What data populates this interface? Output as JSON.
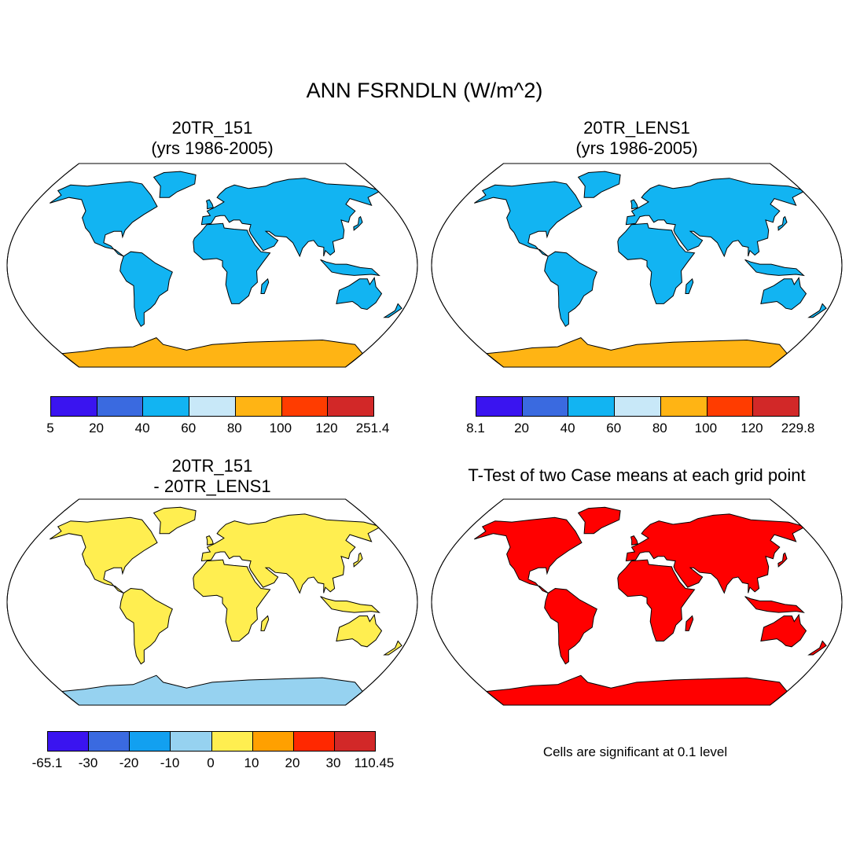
{
  "title": "ANN FSRNDLN (W/m^2)",
  "panels": [
    {
      "id": "case1",
      "title_line1": "20TR_151",
      "title_line2": "(yrs 1986-2005)",
      "colorbar": {
        "colors": [
          "#3a14f0",
          "#3a6ae0",
          "#12b4f2",
          "#c8e8f8",
          "#ffb414",
          "#ff3c00",
          "#d22828"
        ],
        "labels": [
          "5",
          "20",
          "40",
          "60",
          "80",
          "100",
          "120",
          "251.4"
        ]
      },
      "ocean_color": "#ffffff",
      "land_color": "#12b4f2",
      "ice_color": "#ffb414"
    },
    {
      "id": "case2",
      "title_line1": "20TR_LENS1",
      "title_line2": "(yrs 1986-2005)",
      "colorbar": {
        "colors": [
          "#3a14f0",
          "#3a6ae0",
          "#12b4f2",
          "#c8e8f8",
          "#ffb414",
          "#ff3c00",
          "#d22828"
        ],
        "labels": [
          "8.1",
          "20",
          "40",
          "60",
          "80",
          "100",
          "120",
          "229.8"
        ]
      },
      "ocean_color": "#ffffff",
      "land_color": "#12b4f2",
      "ice_color": "#ffb414"
    },
    {
      "id": "diff",
      "title_line1": "20TR_151",
      "title_line2": "- 20TR_LENS1",
      "colorbar": {
        "colors": [
          "#3a14f0",
          "#3a6ae0",
          "#12a0f0",
          "#96d2f0",
          "#ffee50",
          "#ffa000",
          "#ff2800",
          "#d22828"
        ],
        "labels": [
          "-65.1",
          "-30",
          "-20",
          "-10",
          "0",
          "10",
          "20",
          "30",
          "110.45"
        ]
      },
      "ocean_color": "#ffffff",
      "land_color": "#ffee50",
      "ice_color": "#96d2f0"
    },
    {
      "id": "ttest",
      "title_line1": "T-Test of two Case means at each grid point",
      "title_line2": "",
      "note": "Cells are significant at 0.1 level",
      "ocean_color": "#ffffff",
      "land_color": "#ff0000",
      "ice_color": "#ff0000"
    }
  ]
}
